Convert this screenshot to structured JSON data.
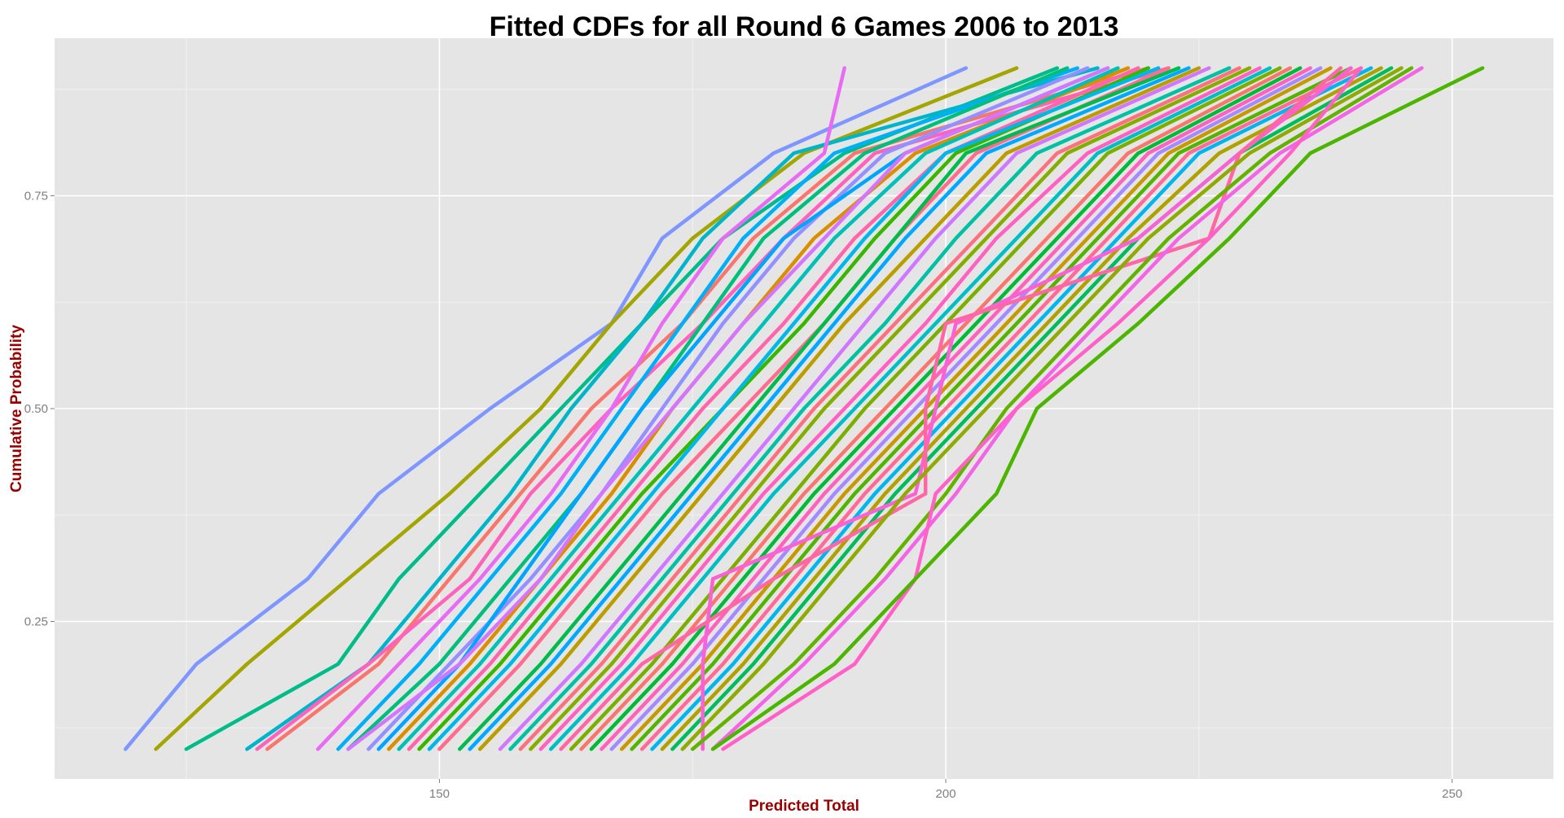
{
  "chart_data": {
    "type": "line",
    "title": "Fitted CDFs for all Round 6 Games 2006 to 2013",
    "xlabel": "Predicted Total",
    "ylabel": "Cumulative Probability",
    "axis_title_color": "#990000",
    "panel_background": "#e5e5e5",
    "grid": true,
    "legend": "none",
    "xlim": [
      112,
      260
    ],
    "ylim": [
      0.065,
      0.935
    ],
    "xticks": [
      150,
      200,
      250
    ],
    "xtick_labels": [
      "150",
      "200",
      "250"
    ],
    "yticks": [
      0.25,
      0.5,
      0.75
    ],
    "ytick_labels": [
      "0.25",
      "0.50",
      "0.75"
    ],
    "y_levels": [
      0.1,
      0.2,
      0.3,
      0.4,
      0.5,
      0.6,
      0.7,
      0.8,
      0.9
    ],
    "series": [
      {
        "color": "#7F96FF",
        "x": [
          119,
          126,
          137,
          144,
          155,
          167,
          172,
          183,
          202
        ]
      },
      {
        "color": "#A3A500",
        "x": [
          122,
          131,
          141,
          151,
          160,
          167,
          175,
          186,
          207
        ]
      },
      {
        "color": "#00BC89",
        "x": [
          125,
          140,
          146,
          154,
          162,
          170,
          178,
          190,
          211
        ]
      },
      {
        "color": "#00B5CA",
        "x": [
          131,
          143,
          150,
          157,
          163,
          170,
          176,
          185,
          215
        ]
      },
      {
        "color": "#F8766D",
        "x": [
          133,
          144,
          151,
          158,
          165,
          174,
          181,
          191,
          220
        ]
      },
      {
        "color": "#FF62BC",
        "x": [
          132,
          143,
          153,
          159,
          167,
          176,
          184,
          193,
          222
        ]
      },
      {
        "color": "#E76BF3",
        "x": [
          138,
          146,
          154,
          161,
          167,
          172,
          178,
          188,
          190
        ]
      },
      {
        "color": "#00B0F6",
        "x": [
          140,
          148,
          155,
          162,
          168,
          174,
          180,
          189,
          213
        ]
      },
      {
        "color": "#00BF7D",
        "x": [
          141,
          150,
          157,
          164,
          170,
          176,
          182,
          192,
          212
        ]
      },
      {
        "color": "#9590FF",
        "x": [
          143,
          151,
          159,
          166,
          172,
          178,
          185,
          194,
          214
        ]
      },
      {
        "color": "#00A5FF",
        "x": [
          144,
          152,
          158,
          164,
          170,
          177,
          184,
          196,
          216
        ]
      },
      {
        "color": "#D89000",
        "x": [
          145,
          153,
          160,
          167,
          173,
          180,
          187,
          197,
          218
        ]
      },
      {
        "color": "#00C0B8",
        "x": [
          146,
          154,
          161,
          168,
          175,
          182,
          189,
          198,
          217
        ]
      },
      {
        "color": "#FF65AC",
        "x": [
          147,
          155,
          162,
          169,
          176,
          184,
          191,
          200,
          219
        ]
      },
      {
        "color": "#39B600",
        "x": [
          148,
          156,
          163,
          170,
          178,
          186,
          193,
          201,
          220
        ]
      },
      {
        "color": "#D575FE",
        "x": [
          141,
          152,
          160,
          166,
          173,
          180,
          188,
          196,
          216
        ]
      },
      {
        "color": "#00B8E7",
        "x": [
          149,
          157,
          164,
          171,
          178,
          185,
          192,
          200,
          221
        ]
      },
      {
        "color": "#FF6C90",
        "x": [
          150,
          158,
          165,
          172,
          180,
          188,
          195,
          203,
          222
        ]
      },
      {
        "color": "#00BB4E",
        "x": [
          152,
          160,
          167,
          174,
          181,
          188,
          195,
          202,
          223
        ]
      },
      {
        "color": "#00A9FF",
        "x": [
          153,
          161,
          168,
          175,
          182,
          189,
          196,
          204,
          224
        ]
      },
      {
        "color": "#BB9D00",
        "x": [
          154,
          162,
          169,
          176,
          183,
          190,
          198,
          206,
          225
        ]
      },
      {
        "color": "#CF78FF",
        "x": [
          156,
          164,
          171,
          178,
          185,
          192,
          199,
          207,
          226
        ]
      },
      {
        "color": "#00C1A3",
        "x": [
          157,
          165,
          172,
          179,
          186,
          194,
          201,
          209,
          228
        ]
      },
      {
        "color": "#FC717F",
        "x": [
          158,
          166,
          173,
          180,
          187,
          195,
          203,
          211,
          229
        ]
      },
      {
        "color": "#85AD00",
        "x": [
          159,
          167,
          174,
          181,
          188,
          196,
          204,
          212,
          230
        ]
      },
      {
        "color": "#FF61C3",
        "x": [
          160,
          168,
          175,
          182,
          190,
          198,
          205,
          214,
          231
        ]
      },
      {
        "color": "#00BFC4",
        "x": [
          161,
          169,
          176,
          183,
          191,
          199,
          207,
          215,
          232
        ]
      },
      {
        "color": "#7CAE00",
        "x": [
          163,
          171,
          178,
          185,
          192,
          200,
          208,
          216,
          233
        ]
      },
      {
        "color": "#F8766D",
        "x": [
          164,
          172,
          179,
          186,
          194,
          202,
          210,
          218,
          234
        ]
      },
      {
        "color": "#00BA38",
        "x": [
          165,
          173,
          180,
          187,
          195,
          203,
          211,
          219,
          235
        ]
      },
      {
        "color": "#FF62BC",
        "x": [
          166,
          174,
          181,
          188,
          196,
          204,
          212,
          220,
          236
        ]
      },
      {
        "color": "#A58AFF",
        "x": [
          167,
          175,
          182,
          189,
          197,
          205,
          213,
          221,
          237
        ]
      },
      {
        "color": "#C49A00",
        "x": [
          168,
          176,
          183,
          190,
          198,
          206,
          214,
          222,
          238
        ]
      },
      {
        "color": "#53B400",
        "x": [
          169,
          177,
          184,
          191,
          199,
          207,
          215,
          223,
          240
        ]
      },
      {
        "color": "#FF6A98",
        "x": [
          170,
          178,
          185,
          192,
          200,
          208,
          216,
          224,
          241
        ]
      },
      {
        "color": "#00B6EB",
        "x": [
          171,
          179,
          186,
          193,
          201,
          209,
          217,
          225,
          242
        ]
      },
      {
        "color": "#AEA200",
        "x": [
          172,
          180,
          187,
          194,
          202,
          210,
          218,
          227,
          243
        ]
      },
      {
        "color": "#00BD5C",
        "x": [
          173,
          181,
          188,
          195,
          203,
          211,
          219,
          229,
          244
        ]
      },
      {
        "color": "#FB61D7",
        "x": [
          176,
          176,
          177,
          197,
          199,
          201,
          219,
          229,
          240
        ]
      },
      {
        "color": "#FF67A4",
        "x": [
          162,
          170,
          183,
          198,
          198,
          200,
          226,
          229,
          239
        ]
      },
      {
        "color": "#8FAA00",
        "x": [
          174,
          182,
          189,
          196,
          204,
          212,
          220,
          230,
          245
        ]
      },
      {
        "color": "#64B200",
        "x": [
          175,
          185,
          193,
          200,
          206,
          214,
          222,
          232,
          246
        ]
      },
      {
        "color": "#F365E6",
        "x": [
          177,
          186,
          194,
          201,
          207,
          215,
          223,
          233,
          247
        ]
      },
      {
        "color": "#FF61C9",
        "x": [
          178,
          191,
          197,
          199,
          207,
          217,
          226,
          234,
          241
        ]
      },
      {
        "color": "#4BB500",
        "x": [
          177,
          189,
          197,
          205,
          209,
          219,
          228,
          236,
          253
        ]
      }
    ]
  }
}
